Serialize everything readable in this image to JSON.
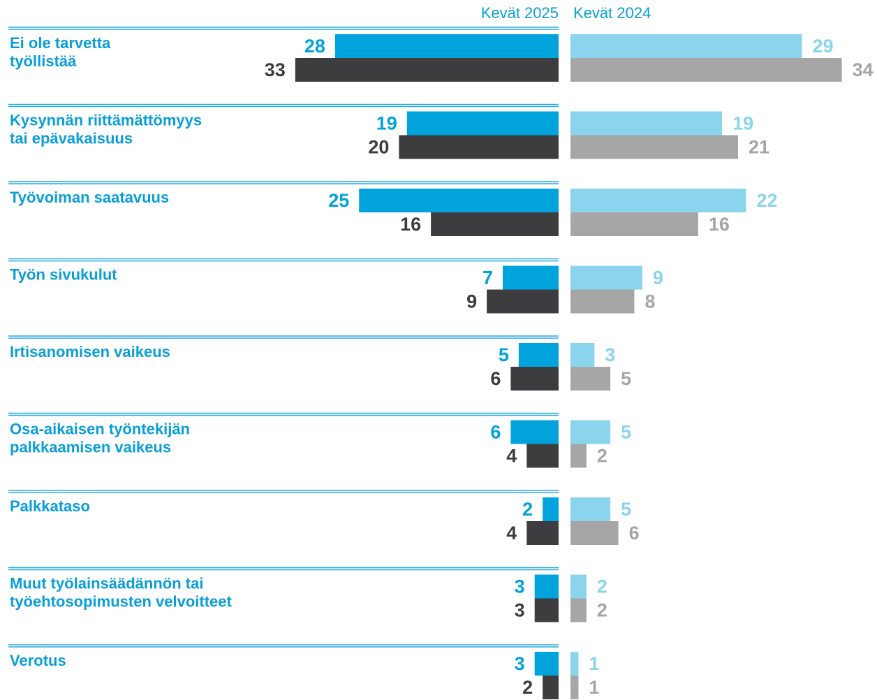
{
  "chart_data": {
    "type": "butterfly-bar",
    "categories": [
      [
        "Ei ole tarvetta",
        "työllistää"
      ],
      [
        "Kysynnän riittämättömyys",
        "tai epävakaisuus"
      ],
      [
        "Työvoiman saatavuus"
      ],
      [
        "Työn sivukulut"
      ],
      [
        "Irtisanomisen vaikeus"
      ],
      [
        "Osa-aikaisen työntekijän",
        "palkkaamisen vaikeus"
      ],
      [
        "Palkkataso"
      ],
      [
        "Muut työlainsäädännön tai",
        "työehtosopimusten velvoitteet"
      ],
      [
        "Verotus"
      ]
    ],
    "panels": [
      {
        "title": "Kevät 2025",
        "side": "left",
        "series": [
          {
            "color": "#00a3dc",
            "values": [
              28,
              19,
              25,
              7,
              5,
              6,
              2,
              3,
              3
            ]
          },
          {
            "color": "#3d3d3f",
            "values": [
              33,
              20,
              16,
              9,
              6,
              4,
              4,
              3,
              2
            ]
          }
        ]
      },
      {
        "title": "Kevät 2024",
        "side": "right",
        "series": [
          {
            "color": "#8ad4ee",
            "values": [
              29,
              19,
              22,
              9,
              3,
              5,
              5,
              2,
              1
            ]
          },
          {
            "color": "#a6a6a6",
            "values": [
              34,
              21,
              16,
              8,
              5,
              2,
              6,
              2,
              1
            ]
          }
        ]
      }
    ]
  }
}
